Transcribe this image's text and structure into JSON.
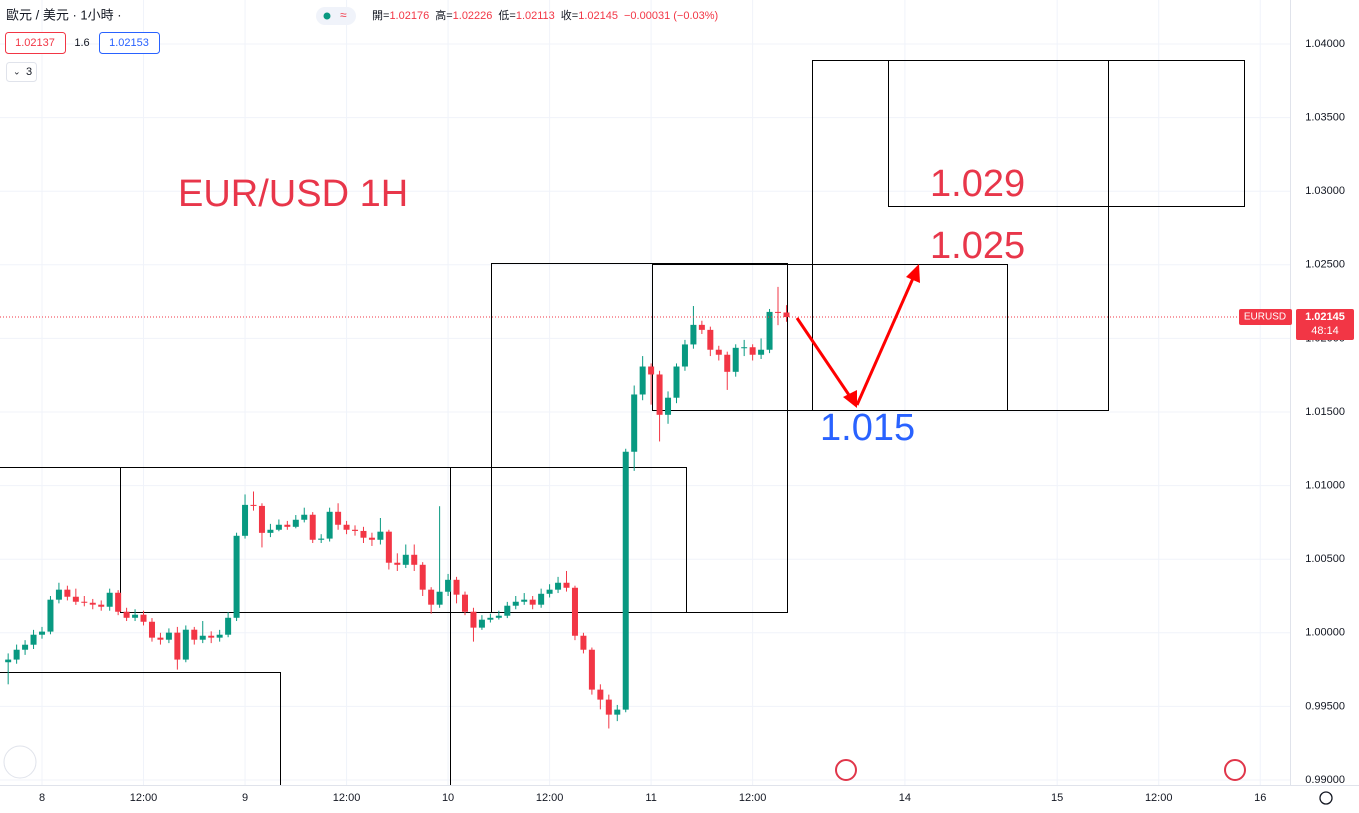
{
  "header": {
    "symbol": "歐元 / 美元 · 1小時 ·",
    "ohlc": [
      {
        "label": "開=",
        "value": "1.02176"
      },
      {
        "label": "高=",
        "value": "1.02226"
      },
      {
        "label": "低=",
        "value": "1.02113"
      },
      {
        "label": "收=",
        "value": "1.02145"
      }
    ],
    "change": "−0.00031 (−0.03%)",
    "bid": "1.02137",
    "spread": "1.6",
    "ask": "1.02153",
    "indicator_count": "3"
  },
  "chart_data": {
    "type": "candlestick",
    "annotations": [
      {
        "text": "EUR/USD 1H",
        "color": "#e8364a"
      },
      {
        "text": "1.029",
        "color": "#e8364a"
      },
      {
        "text": "1.025",
        "color": "#e8364a"
      },
      {
        "text": "1.015",
        "color": "#2962ff"
      }
    ],
    "x": [
      -4,
      -3,
      -2,
      -1,
      0,
      1,
      2,
      3,
      4,
      5,
      6,
      7,
      8,
      9,
      10,
      11,
      12,
      13,
      14,
      15,
      16,
      17,
      18,
      19,
      20,
      21,
      22,
      23,
      24,
      25,
      26,
      27,
      28,
      29,
      30,
      31,
      32,
      33,
      34,
      35,
      36,
      37,
      38,
      39,
      40,
      41,
      42,
      43,
      44,
      45,
      46,
      47,
      48,
      49,
      50,
      51,
      52,
      53,
      54,
      55,
      56,
      57,
      58,
      59,
      60,
      61,
      62,
      63,
      64,
      65,
      66,
      67,
      68,
      69,
      70,
      71,
      72,
      73,
      74,
      75,
      76,
      77,
      78,
      79,
      80,
      81,
      82,
      83,
      84,
      85,
      86,
      87,
      88
    ],
    "open": [
      0.998,
      0.99818,
      0.99885,
      0.99919,
      0.99987,
      1.00008,
      1.00225,
      1.00293,
      1.00245,
      1.00211,
      1.00204,
      1.00191,
      1.00177,
      1.00272,
      1.00143,
      1.00102,
      1.00123,
      1.00075,
      0.99967,
      0.99953,
      1.00001,
      0.99818,
      1.00021,
      0.99953,
      0.9998,
      0.99967,
      0.99987,
      1.00102,
      1.00659,
      1.00869,
      1.00862,
      1.00679,
      1.007,
      1.00734,
      1.0072,
      1.00768,
      1.00802,
      1.00632,
      1.0064,
      1.00822,
      1.00734,
      1.007,
      1.00692,
      1.00646,
      1.00632,
      1.00687,
      1.00476,
      1.00462,
      1.0053,
      1.00462,
      1.00293,
      1.00191,
      1.00279,
      1.0036,
      1.00259,
      1.00143,
      1.00035,
      1.00089,
      1.00102,
      1.00116,
      1.00184,
      1.00211,
      1.00225,
      1.00191,
      1.00265,
      1.00293,
      1.0034,
      1.00306,
      0.9998,
      0.99885,
      0.99614,
      0.99546,
      0.99444,
      0.99478,
      1.0123,
      1.01619,
      1.01809,
      1.01755,
      1.01481,
      1.01597,
      1.01809,
      1.01959,
      1.02092,
      1.02058,
      1.01923,
      1.01889,
      1.01773,
      1.01936,
      1.0194,
      1.01889,
      1.01923,
      1.0218,
      1.02176
    ],
    "high": [
      0.9986,
      0.9992,
      0.9995,
      1.0002,
      1.0004,
      1.0025,
      1.0034,
      1.0032,
      1.003,
      1.0025,
      1.0023,
      1.0022,
      1.003,
      1.0029,
      1.0017,
      1.0016,
      1.0015,
      1.001,
      1.0,
      1.0003,
      1.0004,
      1.0005,
      1.0004,
      1.0008,
      1.0001,
      1.0002,
      1.0014,
      1.0068,
      1.0094,
      1.0096,
      1.0088,
      1.0074,
      1.0077,
      1.0076,
      1.008,
      1.0085,
      1.0082,
      1.0067,
      1.0085,
      1.0088,
      1.0076,
      1.0073,
      1.0072,
      1.0068,
      1.0078,
      1.007,
      1.0054,
      1.006,
      1.006,
      1.0048,
      1.0031,
      1.0086,
      1.004,
      1.0038,
      1.0028,
      1.0017,
      1.0012,
      1.0013,
      1.0015,
      1.0021,
      1.0025,
      1.0027,
      1.0025,
      1.003,
      1.0033,
      1.0038,
      1.0042,
      1.0032,
      1.0,
      0.999,
      0.9965,
      0.9958,
      0.9951,
      1.0125,
      1.0168,
      1.0188,
      1.0183,
      1.0178,
      1.0164,
      1.0183,
      1.0199,
      1.0222,
      1.0212,
      1.0208,
      1.0195,
      1.0191,
      1.0196,
      1.0199,
      1.0196,
      1.02,
      1.022,
      1.0235,
      1.02226
    ],
    "low": [
      0.9965,
      0.9979,
      0.9985,
      0.9989,
      0.9996,
      0.9999,
      1.002,
      1.0022,
      1.0019,
      1.0018,
      1.0016,
      1.0015,
      1.0015,
      1.0012,
      1.0008,
      1.0008,
      1.0005,
      0.9994,
      0.9992,
      0.9993,
      0.9975,
      0.998,
      0.9992,
      0.9993,
      0.9993,
      0.9994,
      0.9997,
      1.0008,
      1.0064,
      1.0083,
      1.0058,
      1.0065,
      1.0069,
      1.007,
      1.0071,
      1.0075,
      1.0061,
      1.0061,
      1.0062,
      1.007,
      1.0067,
      1.0066,
      1.0061,
      1.0059,
      1.006,
      1.0043,
      1.0042,
      1.0044,
      1.0042,
      1.0025,
      1.0013,
      1.0017,
      1.0025,
      1.002,
      1.0012,
      0.9994,
      1.0002,
      1.0007,
      1.0009,
      1.001,
      1.0016,
      1.0019,
      1.0016,
      1.0017,
      1.0024,
      1.0027,
      1.0028,
      0.9995,
      0.9986,
      0.9958,
      0.9948,
      0.9935,
      0.994,
      0.9946,
      1.011,
      1.0158,
      1.0155,
      1.013,
      1.0142,
      1.0156,
      1.0178,
      1.0193,
      1.0203,
      1.0188,
      1.0185,
      1.0165,
      1.0174,
      1.0188,
      1.0185,
      1.0186,
      1.019,
      1.0209,
      1.02113
    ],
    "close": [
      0.99818,
      0.99885,
      0.99919,
      0.99987,
      1.00008,
      1.00225,
      1.00293,
      1.00245,
      1.00211,
      1.00204,
      1.00191,
      1.00177,
      1.00272,
      1.00143,
      1.00102,
      1.00123,
      1.00075,
      0.99967,
      0.99953,
      1.00001,
      0.99818,
      1.00021,
      0.99953,
      0.9998,
      0.99967,
      0.99987,
      1.00102,
      1.00659,
      1.00869,
      1.00862,
      1.00679,
      1.007,
      1.00734,
      1.0072,
      1.00768,
      1.00802,
      1.00632,
      1.0064,
      1.00822,
      1.00734,
      1.007,
      1.00692,
      1.00646,
      1.00632,
      1.00687,
      1.00476,
      1.00462,
      1.0053,
      1.00462,
      1.00293,
      1.00191,
      1.00279,
      1.0036,
      1.00259,
      1.00143,
      1.00035,
      1.00089,
      1.00102,
      1.00116,
      1.00184,
      1.00211,
      1.00225,
      1.00191,
      1.00265,
      1.00293,
      1.0034,
      1.00306,
      0.9998,
      0.99885,
      0.99614,
      0.99546,
      0.99444,
      0.99478,
      1.0123,
      1.01619,
      1.01809,
      1.01755,
      1.01481,
      1.01597,
      1.01809,
      1.01959,
      1.02092,
      1.02058,
      1.01923,
      1.01889,
      1.01773,
      1.01936,
      1.0194,
      1.01889,
      1.01923,
      1.0218,
      1.02176,
      1.02145
    ],
    "up_color": "#089981",
    "down_color": "#f23645",
    "xlim": [
      -4.965,
      147.52
    ],
    "xticks": [
      {
        "value": 0,
        "label": "8"
      },
      {
        "value": 12,
        "label": "12:00"
      },
      {
        "value": 24,
        "label": "9"
      },
      {
        "value": 36,
        "label": "12:00"
      },
      {
        "value": 48,
        "label": "10"
      },
      {
        "value": 60,
        "label": "12:00"
      },
      {
        "value": 72,
        "label": "11"
      },
      {
        "value": 84,
        "label": "12:00"
      },
      {
        "value": 102,
        "label": "14"
      },
      {
        "value": 120,
        "label": "15"
      },
      {
        "value": 132,
        "label": "12:00"
      },
      {
        "value": 144,
        "label": "16"
      }
    ],
    "ylim": [
      0.98966,
      1.04299
    ],
    "yticks": [
      {
        "value": 0.99,
        "label": "0.99000"
      },
      {
        "value": 0.995,
        "label": "0.99500"
      },
      {
        "value": 1.0,
        "label": "1.00000"
      },
      {
        "value": 1.005,
        "label": "1.00500"
      },
      {
        "value": 1.01,
        "label": "1.01000"
      },
      {
        "value": 1.015,
        "label": "1.01500"
      },
      {
        "value": 1.02,
        "label": "1.02000"
      },
      {
        "value": 1.025,
        "label": "1.02500"
      },
      {
        "value": 1.03,
        "label": "1.03000"
      },
      {
        "value": 1.035,
        "label": "1.03500"
      },
      {
        "value": 1.04,
        "label": "1.04000"
      }
    ],
    "grid": true,
    "last_price": {
      "symbol": "EURUSD",
      "value": 1.02145,
      "countdown": "48:14",
      "color": "#f23645"
    }
  }
}
